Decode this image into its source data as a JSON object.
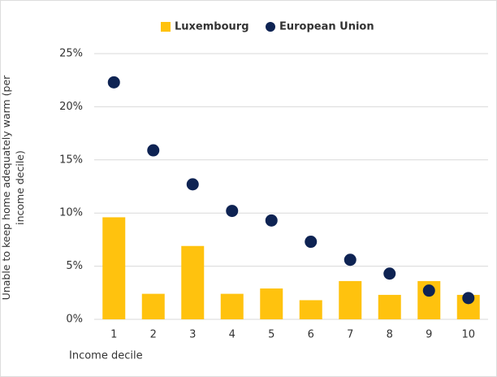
{
  "chart_data": {
    "type": "bar",
    "xlabel": "Income decile",
    "ylabel": "Unable to keep home adequately warm (per income decile)",
    "categories": [
      "1",
      "2",
      "3",
      "4",
      "5",
      "6",
      "7",
      "8",
      "9",
      "10"
    ],
    "series": [
      {
        "name": "Luxembourg",
        "type": "bar",
        "color": "#ffc20e",
        "values": [
          9.6,
          2.4,
          6.9,
          2.4,
          2.9,
          1.8,
          3.6,
          2.3,
          3.6,
          2.3
        ]
      },
      {
        "name": "European Union",
        "type": "scatter",
        "color": "#0e2353",
        "values": [
          22.3,
          15.9,
          12.7,
          10.2,
          9.3,
          7.3,
          5.6,
          4.3,
          2.7,
          2.0
        ]
      }
    ],
    "ylim": [
      0,
      25
    ],
    "yticks": [
      {
        "value": 0,
        "label": "0%"
      },
      {
        "value": 5,
        "label": "5%"
      },
      {
        "value": 10,
        "label": "10%"
      },
      {
        "value": 15,
        "label": "15%"
      },
      {
        "value": 20,
        "label": "20%"
      },
      {
        "value": 25,
        "label": "25%"
      }
    ],
    "grid": true,
    "legend": "top"
  }
}
